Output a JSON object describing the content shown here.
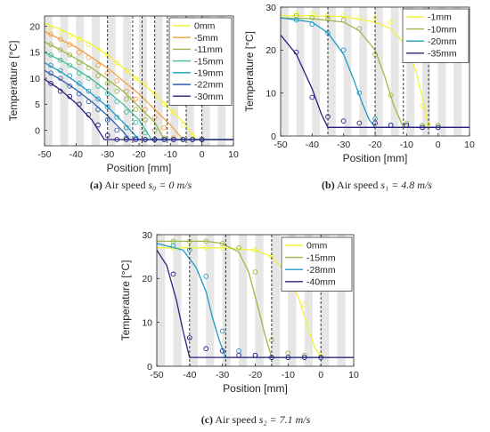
{
  "chart_data": [
    {
      "type": "line",
      "panel_label": "(a)",
      "caption_text": "Air speed",
      "caption_math": "s₀ = 0 m/s",
      "xlabel": "Position [mm]",
      "ylabel": "Temperature [°C]",
      "xlim": [
        -50,
        10
      ],
      "ylim": [
        -3,
        22
      ],
      "xticks": [
        -50,
        -40,
        -30,
        -20,
        -10,
        0,
        10
      ],
      "yticks": [
        0,
        5,
        10,
        15,
        20
      ],
      "grid": false,
      "legend_position": "top-right",
      "series": [
        {
          "name": "0mm",
          "color": "#f2f23a",
          "boundary": 0,
          "fit": {
            "x": [
              -50,
              -45,
              -40,
              -35,
              -30,
              -25,
              -20,
              -15,
              -10,
              -5,
              -2,
              0,
              10
            ],
            "y": [
              20.5,
              19.5,
              18.0,
              16.5,
              14.5,
              12.0,
              9.5,
              7.0,
              4.0,
              1.0,
              -1.8,
              -1.8,
              -1.8
            ]
          },
          "points": {
            "x": [
              -48,
              -45,
              -42,
              -39,
              -36,
              -33,
              -30,
              -27,
              -24,
              -21,
              -18,
              -15,
              -12,
              -9,
              -6,
              -3,
              0
            ],
            "y": [
              19.8,
              18.8,
              18.2,
              17.5,
              16.5,
              15.5,
              14.5,
              13.0,
              11.5,
              10.0,
              9.0,
              7.0,
              5.0,
              3.5,
              1.0,
              -1.0,
              -1.8
            ]
          }
        },
        {
          "name": "-5mm",
          "color": "#f5a040",
          "boundary": -5,
          "fit": {
            "x": [
              -50,
              -45,
              -40,
              -35,
              -30,
              -25,
              -20,
              -15,
              -10,
              -6,
              -5,
              10
            ],
            "y": [
              19.0,
              17.5,
              16.0,
              14.0,
              12.0,
              9.5,
              7.0,
              4.0,
              1.0,
              -1.8,
              -1.8,
              -1.8
            ]
          },
          "points": {
            "x": [
              -48,
              -45,
              -42,
              -39,
              -36,
              -33,
              -30,
              -27,
              -24,
              -21,
              -18,
              -15,
              -12,
              -9,
              -6,
              -3,
              0
            ],
            "y": [
              18.5,
              17.5,
              16.5,
              15.0,
              14.0,
              12.5,
              11.0,
              9.5,
              7.5,
              6.0,
              4.0,
              2.5,
              0.5,
              -1.5,
              -1.8,
              -1.8,
              -1.8
            ]
          }
        },
        {
          "name": "-11mm",
          "color": "#9bb84a",
          "boundary": -11,
          "fit": {
            "x": [
              -50,
              -45,
              -40,
              -35,
              -30,
              -25,
              -20,
              -15,
              -12,
              -11,
              10
            ],
            "y": [
              17.0,
              15.5,
              13.8,
              12.0,
              9.8,
              7.5,
              4.5,
              1.5,
              -1.8,
              -1.8,
              -1.8
            ]
          },
          "points": {
            "x": [
              -48,
              -45,
              -42,
              -39,
              -36,
              -33,
              -30,
              -27,
              -24,
              -21,
              -18,
              -15,
              -12,
              -9,
              -6,
              -3,
              0
            ],
            "y": [
              16.5,
              15.5,
              14.5,
              13.0,
              12.0,
              10.5,
              9.0,
              7.5,
              6.0,
              4.0,
              2.0,
              0.0,
              -1.5,
              -1.8,
              -1.8,
              -1.8,
              -1.8
            ]
          }
        },
        {
          "name": "-15mm",
          "color": "#3fbd9a",
          "boundary": -15,
          "fit": {
            "x": [
              -50,
              -45,
              -40,
              -35,
              -30,
              -25,
              -20,
              -16,
              -15,
              10
            ],
            "y": [
              15.0,
              13.5,
              11.8,
              9.8,
              7.5,
              5.0,
              2.0,
              -1.8,
              -1.8,
              -1.8
            ]
          },
          "points": {
            "x": [
              -48,
              -45,
              -42,
              -39,
              -36,
              -33,
              -30,
              -27,
              -24,
              -21,
              -18,
              -15,
              -12,
              -9,
              -6,
              -3,
              0
            ],
            "y": [
              14.5,
              13.5,
              12.5,
              11.0,
              10.0,
              8.5,
              7.0,
              5.5,
              3.5,
              1.5,
              -0.5,
              -1.8,
              -1.8,
              -1.8,
              -1.8,
              -1.8,
              -1.8
            ]
          }
        },
        {
          "name": "-19mm",
          "color": "#1e9bc6",
          "boundary": -19,
          "fit": {
            "x": [
              -50,
              -45,
              -40,
              -35,
              -30,
              -25,
              -20,
              -19,
              10
            ],
            "y": [
              13.0,
              11.3,
              9.3,
              7.0,
              4.5,
              1.5,
              -1.8,
              -1.8,
              -1.8
            ]
          },
          "points": {
            "x": [
              -48,
              -45,
              -42,
              -39,
              -36,
              -33,
              -30,
              -27,
              -24,
              -21,
              -18,
              -15,
              -12,
              -9,
              -6,
              -3,
              0
            ],
            "y": [
              12.5,
              11.5,
              10.5,
              9.0,
              7.5,
              6.0,
              4.5,
              2.5,
              0.5,
              -1.5,
              -1.8,
              -1.8,
              -1.8,
              -1.8,
              -1.8,
              -1.8,
              -1.8
            ]
          }
        },
        {
          "name": "-22mm",
          "color": "#2f5fb0",
          "boundary": -22,
          "fit": {
            "x": [
              -50,
              -45,
              -40,
              -35,
              -30,
              -25,
              -23,
              -22,
              10
            ],
            "y": [
              11.5,
              9.8,
              7.8,
              5.5,
              2.8,
              -0.3,
              -1.8,
              -1.8,
              -1.8
            ]
          },
          "points": {
            "x": [
              -48,
              -45,
              -42,
              -39,
              -36,
              -33,
              -30,
              -27,
              -24,
              -21,
              -18,
              -15,
              -12,
              -9,
              -6,
              -3,
              0
            ],
            "y": [
              11.0,
              10.0,
              8.5,
              7.0,
              5.5,
              4.0,
              2.0,
              0.0,
              -1.5,
              -1.8,
              -1.8,
              -1.8,
              -1.8,
              -1.8,
              -1.8,
              -1.8,
              -1.8
            ]
          }
        },
        {
          "name": "-30mm",
          "color": "#2c1f80",
          "boundary": -30,
          "fit": {
            "x": [
              -50,
              -45,
              -40,
              -35,
              -31,
              -30,
              10
            ],
            "y": [
              9.8,
              7.8,
              5.2,
              2.0,
              -1.8,
              -1.8,
              -1.8
            ]
          },
          "points": {
            "x": [
              -48,
              -45,
              -42,
              -39,
              -36,
              -33,
              -30,
              -27,
              -24,
              -21,
              -18,
              -15,
              -12,
              -9,
              -6,
              -3,
              0
            ],
            "y": [
              9.0,
              7.5,
              6.5,
              5.0,
              3.0,
              1.0,
              -1.0,
              -1.8,
              -1.8,
              -1.8,
              -1.8,
              -1.8,
              -1.8,
              -1.8,
              -1.8,
              -1.8,
              -1.8
            ]
          }
        }
      ]
    },
    {
      "type": "line",
      "panel_label": "(b)",
      "caption_text": "Air speed",
      "caption_math": "s₁ = 4.8 m/s",
      "xlabel": "Position [mm]",
      "ylabel": "Temperature [°C]",
      "xlim": [
        -50,
        10
      ],
      "ylim": [
        0,
        30
      ],
      "xticks": [
        -50,
        -40,
        -30,
        -20,
        -10,
        0,
        10
      ],
      "yticks": [
        0,
        10,
        20,
        30
      ],
      "grid": false,
      "legend_position": "top-right",
      "series": [
        {
          "name": "-1mm",
          "color": "#f2f23a",
          "boundary": -3,
          "fit": {
            "x": [
              -50,
              -40,
              -30,
              -20,
              -15,
              -10,
              -7,
              -5,
              -3,
              0,
              10
            ],
            "y": [
              28.0,
              28.0,
              27.8,
              26.5,
              25.0,
              21.0,
              15.0,
              9.0,
              2.0,
              2.0,
              2.0
            ]
          },
          "points": {
            "x": [
              -45,
              -40,
              -35,
              -30,
              -25,
              -20,
              -15,
              -10,
              -5,
              -3,
              0
            ],
            "y": [
              28.5,
              28.5,
              28.0,
              28.0,
              27.5,
              27.5,
              26.5,
              22.0,
              7.0,
              2.5,
              2.5
            ]
          }
        },
        {
          "name": "-10mm",
          "color": "#9bb84a",
          "boundary": -11,
          "fit": {
            "x": [
              -50,
              -40,
              -30,
              -25,
              -20,
              -17,
              -14,
              -11,
              10
            ],
            "y": [
              27.5,
              27.3,
              26.5,
              24.5,
              20.0,
              14.0,
              7.0,
              2.0,
              2.0
            ]
          },
          "points": {
            "x": [
              -45,
              -40,
              -35,
              -30,
              -25,
              -20,
              -15,
              -10,
              -5,
              0
            ],
            "y": [
              28.0,
              27.5,
              27.5,
              27.0,
              25.0,
              19.0,
              9.5,
              3.0,
              2.5,
              2.5
            ]
          }
        },
        {
          "name": "-20mm",
          "color": "#1e9bc6",
          "boundary": -20,
          "fit": {
            "x": [
              -50,
              -40,
              -35,
              -30,
              -27,
              -24,
              -22,
              -20,
              10
            ],
            "y": [
              27.5,
              26.5,
              24.0,
              19.0,
              13.5,
              7.5,
              4.0,
              2.0,
              2.0
            ]
          },
          "points": {
            "x": [
              -45,
              -40,
              -35,
              -30,
              -25,
              -20,
              -15,
              -10,
              -5,
              0
            ],
            "y": [
              27.0,
              26.0,
              24.0,
              20.0,
              10.0,
              4.0,
              2.5,
              2.5,
              2.0,
              2.0
            ]
          }
        },
        {
          "name": "-35mm",
          "color": "#2c1f80",
          "boundary": -35,
          "fit": {
            "x": [
              -50,
              -45,
              -40,
              -37,
              -35,
              10
            ],
            "y": [
              23.5,
              19.0,
              11.0,
              5.0,
              2.0,
              2.0
            ]
          },
          "points": {
            "x": [
              -45,
              -40,
              -35,
              -30,
              -25,
              -20,
              -15,
              -10,
              -5,
              0
            ],
            "y": [
              19.5,
              9.0,
              4.5,
              3.5,
              3.0,
              3.0,
              2.5,
              2.5,
              2.0,
              2.0
            ]
          }
        }
      ]
    },
    {
      "type": "line",
      "panel_label": "(c)",
      "caption_text": "Air speed",
      "caption_math": "s₂ = 7.1 m/s",
      "xlabel": "Position [mm]",
      "ylabel": "Temperature [°C]",
      "xlim": [
        -50,
        10
      ],
      "ylim": [
        0,
        30
      ],
      "xticks": [
        -50,
        -40,
        -30,
        -20,
        -10,
        0,
        10
      ],
      "yticks": [
        0,
        10,
        20,
        30
      ],
      "grid": false,
      "legend_position": "top-right",
      "series": [
        {
          "name": "0mm",
          "color": "#f2f23a",
          "boundary": 0,
          "fit": {
            "x": [
              -50,
              -30,
              -20,
              -15,
              -10,
              -7,
              -4,
              -2,
              0,
              10
            ],
            "y": [
              27.0,
              27.0,
              26.5,
              25.0,
              21.0,
              16.0,
              9.0,
              4.5,
              2.0,
              2.0
            ]
          },
          "points": {
            "x": [
              -45,
              -40,
              -35,
              -30,
              -25,
              -20,
              -15,
              -10,
              -5,
              0
            ],
            "y": [
              27.0,
              27.0,
              27.0,
              27.0,
              27.0,
              26.5,
              25.0,
              21.5,
              14.0,
              2.5
            ]
          }
        },
        {
          "name": "-15mm",
          "color": "#9bb84a",
          "boundary": -15,
          "fit": {
            "x": [
              -50,
              -35,
              -30,
              -25,
              -22,
              -19,
              -17,
              -15,
              10
            ],
            "y": [
              28.5,
              28.5,
              28.0,
              26.0,
              21.5,
              13.0,
              7.0,
              2.0,
              2.0
            ]
          },
          "points": {
            "x": [
              -45,
              -40,
              -35,
              -30,
              -25,
              -20,
              -15,
              -10,
              -5,
              0
            ],
            "y": [
              28.5,
              28.5,
              28.5,
              28.0,
              27.0,
              21.5,
              6.0,
              3.0,
              2.5,
              2.0
            ]
          }
        },
        {
          "name": "-28mm",
          "color": "#1e9bc6",
          "boundary": -29,
          "fit": {
            "x": [
              -50,
              -42,
              -38,
              -35,
              -33,
              -31,
              -29,
              10
            ],
            "y": [
              28.0,
              26.5,
              22.5,
              17.0,
              11.0,
              6.0,
              2.0,
              2.0
            ]
          },
          "points": {
            "x": [
              -45,
              -40,
              -35,
              -30,
              -25,
              -20,
              -15,
              -10,
              -5,
              0
            ],
            "y": [
              27.5,
              26.5,
              20.5,
              8.0,
              3.5,
              2.5,
              2.0,
              2.0,
              2.0,
              2.0
            ]
          }
        },
        {
          "name": "-40mm",
          "color": "#2c1f80",
          "boundary": -40,
          "fit": {
            "x": [
              -50,
              -47,
              -44,
              -42,
              -40,
              10
            ],
            "y": [
              26.5,
              23.0,
              15.0,
              8.0,
              2.0,
              2.0
            ]
          },
          "points": {
            "x": [
              -45,
              -40,
              -35,
              -30,
              -25,
              -20,
              -15,
              -10,
              -5,
              0
            ],
            "y": [
              21.0,
              6.5,
              4.0,
              3.5,
              2.5,
              2.5,
              2.0,
              2.0,
              2.0,
              2.0
            ]
          }
        }
      ]
    }
  ]
}
